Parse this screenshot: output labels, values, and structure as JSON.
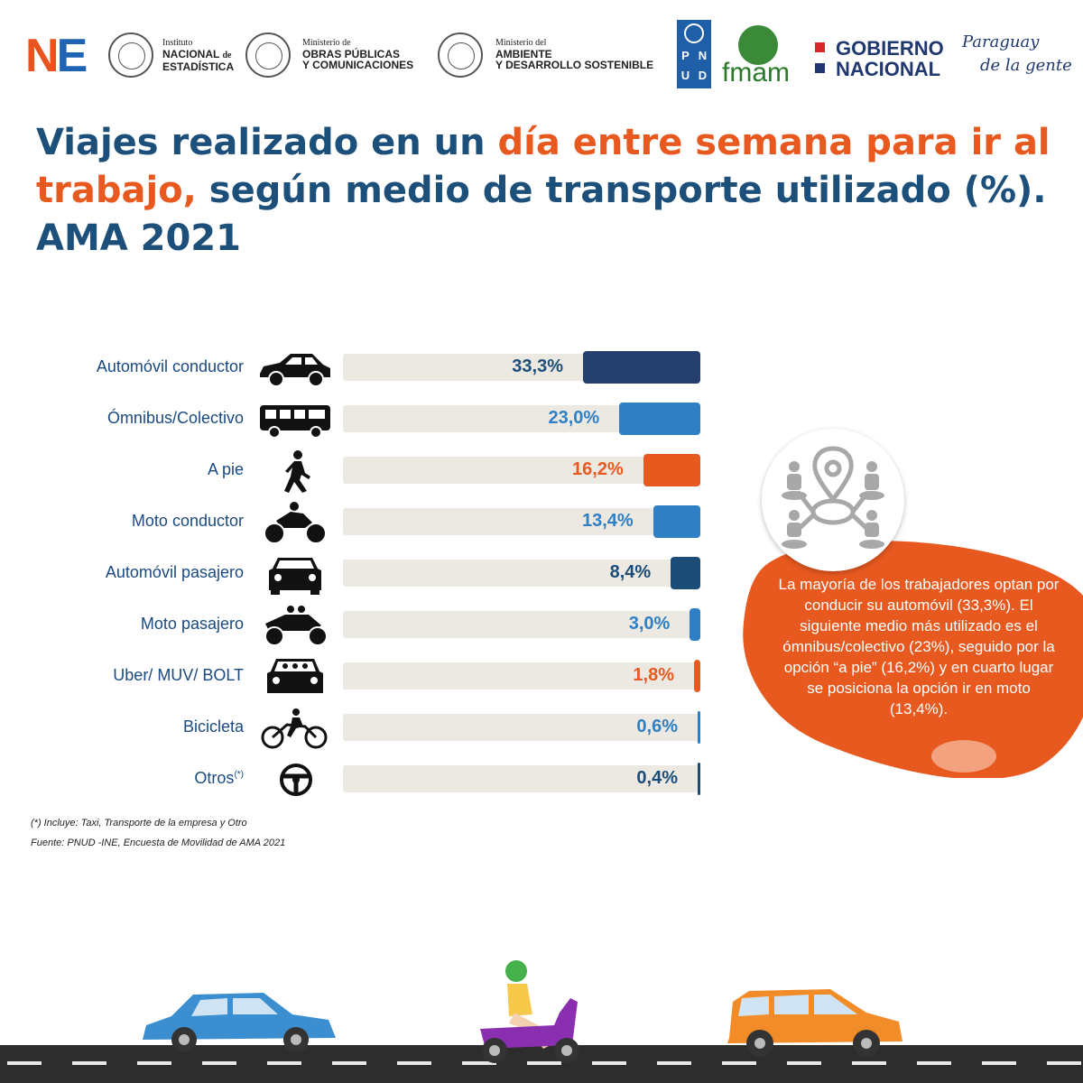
{
  "header": {
    "ne_logo": "NE",
    "ine": {
      "line1": "Instituto",
      "line2a": "NACIONAL",
      "line2b": "de",
      "line3": "ESTADÍSTICA"
    },
    "mopc": {
      "line1": "Ministerio de",
      "line2": "OBRAS PÚBLICAS",
      "line3": "Y COMUNICACIONES"
    },
    "mades": {
      "line1": "Ministerio del",
      "line2": "AMBIENTE",
      "line3": "Y DESARROLLO SOSTENIBLE"
    },
    "pnud": [
      "P",
      "N",
      "U",
      "D"
    ],
    "fmam": "fmam",
    "gobierno": {
      "line1": "GOBIERNO",
      "line2": "NACIONAL"
    },
    "paraguay": {
      "line1": "Paraguay",
      "line2": "de la gente"
    }
  },
  "title": {
    "part1": "Viajes realizado en un ",
    "part2": "día entre semana para ir al trabajo,",
    "part3": " según medio de transporte utilizado (%). AMA 2021"
  },
  "chart_data": {
    "type": "bar",
    "orientation": "horizontal",
    "unit": "%",
    "categories": [
      "Automóvil conductor",
      "Ómnibus/Colectivo",
      "A pie",
      "Moto conductor",
      "Automóvil pasajero",
      "Moto pasajero",
      "Uber/ MUV/ BOLT",
      "Bicicleta",
      "Otros"
    ],
    "values": [
      33.3,
      23.0,
      16.2,
      13.4,
      8.4,
      3.0,
      1.8,
      0.6,
      0.4
    ],
    "value_labels": [
      "33,3%",
      "23,0%",
      "16,2%",
      "13,4%",
      "8,4%",
      "3,0%",
      "1,8%",
      "0,6%",
      "0,4%"
    ],
    "bar_colors": [
      "#253f6e",
      "#2f7fc4",
      "#e8591f",
      "#2f7fc4",
      "#1c4d78",
      "#2f7fc4",
      "#e8591f",
      "#2f7fc4",
      "#1c4d78"
    ],
    "icons": [
      "car-icon",
      "bus-icon",
      "walking-person-icon",
      "motorcycle-icon",
      "car-front-icon",
      "motorcycle-passenger-icon",
      "taxi-app-car-icon",
      "bicycle-icon",
      "steering-wheel-icon"
    ],
    "otros_mark": "(*)",
    "xlim": [
      0,
      33.3
    ],
    "grid": false,
    "legend": "none"
  },
  "callout": {
    "text": "La mayoría de los trabajadores optan por conducir su automóvil (33,3%). El siguiente medio más utilizado es el ómnibus/colectivo (23%), seguido por la opción “a pie” (16,2%) y en cuarto lugar se posiciona la opción ir en moto (13,4%).",
    "icon": "location-network-icon"
  },
  "footnote": "(*) Incluye: Taxi, Transporte de la empresa y Otro",
  "source": "Fuente: PNUD -INE, Encuesta de Movilidad de AMA 2021",
  "colors": {
    "title_blue": "#1c4f7a",
    "accent_orange": "#e8591f",
    "track": "#ece9e2"
  }
}
